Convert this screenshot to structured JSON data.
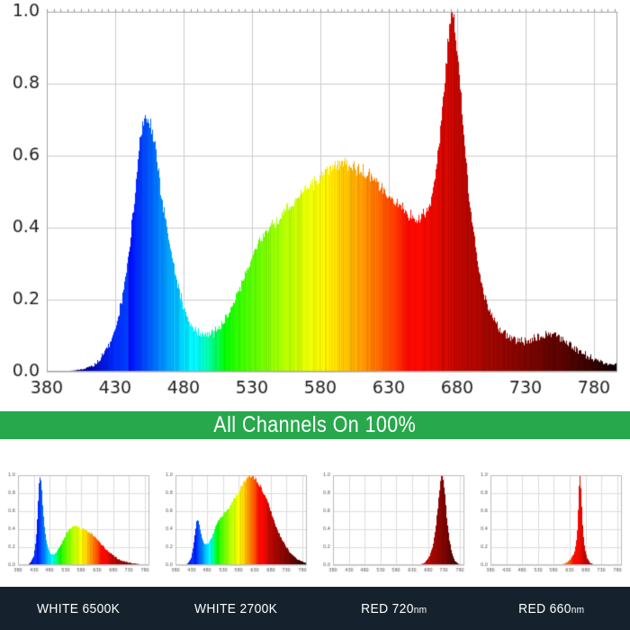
{
  "page": {
    "bg": "#ffffff"
  },
  "banner": {
    "text": "All Channels On 100%",
    "bg": "#27a84c",
    "text_color": "#ffffff"
  },
  "footer": {
    "bg": "#15222e",
    "text_color": "#ffffff",
    "labels": [
      {
        "name": "WHITE 6500K",
        "unit": ""
      },
      {
        "name": "WHITE 2700K",
        "unit": ""
      },
      {
        "name": "RED 720",
        "unit": "nm"
      },
      {
        "name": "RED 660",
        "unit": "nm"
      }
    ]
  },
  "chart_data": [
    {
      "id": "all-channels-100",
      "type": "area",
      "title": "All Channels On 100%",
      "xlabel": "",
      "ylabel": "",
      "grid": true,
      "xlim": [
        380,
        797
      ],
      "ylim": [
        0,
        1
      ],
      "x_ticks": [
        380,
        430,
        480,
        530,
        580,
        630,
        680,
        730,
        780
      ],
      "y_ticks": [
        0,
        0.2,
        0.4,
        0.6,
        0.8,
        1.0
      ],
      "points": [
        [
          380,
          0
        ],
        [
          400,
          0.003
        ],
        [
          408,
          0.008
        ],
        [
          415,
          0.02
        ],
        [
          420,
          0.04
        ],
        [
          425,
          0.07
        ],
        [
          430,
          0.12
        ],
        [
          435,
          0.2
        ],
        [
          440,
          0.33
        ],
        [
          444,
          0.48
        ],
        [
          448,
          0.63
        ],
        [
          451,
          0.7
        ],
        [
          453,
          0.72
        ],
        [
          456,
          0.69
        ],
        [
          460,
          0.6
        ],
        [
          464,
          0.48
        ],
        [
          468,
          0.39
        ],
        [
          472,
          0.31
        ],
        [
          476,
          0.24
        ],
        [
          480,
          0.18
        ],
        [
          484,
          0.145
        ],
        [
          488,
          0.118
        ],
        [
          492,
          0.105
        ],
        [
          497,
          0.1
        ],
        [
          502,
          0.108
        ],
        [
          507,
          0.125
        ],
        [
          512,
          0.155
        ],
        [
          517,
          0.195
        ],
        [
          522,
          0.24
        ],
        [
          527,
          0.29
        ],
        [
          532,
          0.335
        ],
        [
          537,
          0.37
        ],
        [
          542,
          0.395
        ],
        [
          547,
          0.415
        ],
        [
          552,
          0.435
        ],
        [
          557,
          0.455
        ],
        [
          562,
          0.475
        ],
        [
          567,
          0.495
        ],
        [
          572,
          0.515
        ],
        [
          577,
          0.535
        ],
        [
          582,
          0.55
        ],
        [
          587,
          0.565
        ],
        [
          592,
          0.575
        ],
        [
          596,
          0.58
        ],
        [
          600,
          0.575
        ],
        [
          605,
          0.565
        ],
        [
          610,
          0.555
        ],
        [
          615,
          0.545
        ],
        [
          620,
          0.53
        ],
        [
          625,
          0.51
        ],
        [
          630,
          0.49
        ],
        [
          635,
          0.47
        ],
        [
          640,
          0.45
        ],
        [
          645,
          0.435
        ],
        [
          650,
          0.425
        ],
        [
          654,
          0.43
        ],
        [
          658,
          0.45
        ],
        [
          661,
          0.48
        ],
        [
          664,
          0.55
        ],
        [
          667,
          0.64
        ],
        [
          670,
          0.76
        ],
        [
          672,
          0.86
        ],
        [
          674,
          0.94
        ],
        [
          676,
          1
        ],
        [
          678,
          0.96
        ],
        [
          680,
          0.89
        ],
        [
          682,
          0.8
        ],
        [
          684,
          0.7
        ],
        [
          686,
          0.61
        ],
        [
          688,
          0.52
        ],
        [
          691,
          0.42
        ],
        [
          694,
          0.33
        ],
        [
          697,
          0.26
        ],
        [
          700,
          0.21
        ],
        [
          704,
          0.165
        ],
        [
          708,
          0.135
        ],
        [
          712,
          0.115
        ],
        [
          716,
          0.1
        ],
        [
          720,
          0.092
        ],
        [
          725,
          0.085
        ],
        [
          730,
          0.085
        ],
        [
          735,
          0.09
        ],
        [
          740,
          0.098
        ],
        [
          745,
          0.105
        ],
        [
          748,
          0.108
        ],
        [
          752,
          0.103
        ],
        [
          756,
          0.093
        ],
        [
          760,
          0.08
        ],
        [
          765,
          0.066
        ],
        [
          770,
          0.054
        ],
        [
          775,
          0.044
        ],
        [
          780,
          0.035
        ],
        [
          785,
          0.028
        ],
        [
          790,
          0.022
        ],
        [
          795,
          0.018
        ],
        [
          797,
          0.025
        ]
      ]
    },
    {
      "id": "white-6500k",
      "type": "area",
      "title": "WHITE 6500K",
      "xlabel": "",
      "ylabel": "",
      "grid": true,
      "xlim": [
        380,
        795
      ],
      "ylim": [
        0,
        1
      ],
      "x_ticks": [
        380,
        430,
        480,
        530,
        580,
        630,
        680,
        730,
        780
      ],
      "y_ticks": [
        0,
        0.2,
        0.4,
        0.6,
        0.8,
        1.0
      ],
      "points": [
        [
          380,
          0
        ],
        [
          408,
          0.005
        ],
        [
          414,
          0.012
        ],
        [
          420,
          0.03
        ],
        [
          425,
          0.06
        ],
        [
          430,
          0.11
        ],
        [
          434,
          0.19
        ],
        [
          438,
          0.33
        ],
        [
          442,
          0.56
        ],
        [
          445,
          0.8
        ],
        [
          448,
          0.95
        ],
        [
          450,
          1
        ],
        [
          452,
          0.96
        ],
        [
          455,
          0.84
        ],
        [
          458,
          0.67
        ],
        [
          462,
          0.49
        ],
        [
          466,
          0.36
        ],
        [
          470,
          0.27
        ],
        [
          474,
          0.2
        ],
        [
          478,
          0.155
        ],
        [
          482,
          0.13
        ],
        [
          486,
          0.12
        ],
        [
          490,
          0.118
        ],
        [
          495,
          0.125
        ],
        [
          500,
          0.14
        ],
        [
          505,
          0.16
        ],
        [
          510,
          0.19
        ],
        [
          515,
          0.22
        ],
        [
          520,
          0.26
        ],
        [
          525,
          0.3
        ],
        [
          530,
          0.335
        ],
        [
          535,
          0.365
        ],
        [
          540,
          0.39
        ],
        [
          545,
          0.41
        ],
        [
          550,
          0.42
        ],
        [
          555,
          0.43
        ],
        [
          560,
          0.432
        ],
        [
          565,
          0.43
        ],
        [
          570,
          0.425
        ],
        [
          575,
          0.42
        ],
        [
          580,
          0.415
        ],
        [
          585,
          0.41
        ],
        [
          590,
          0.4
        ],
        [
          595,
          0.39
        ],
        [
          600,
          0.38
        ],
        [
          610,
          0.355
        ],
        [
          620,
          0.325
        ],
        [
          630,
          0.29
        ],
        [
          640,
          0.25
        ],
        [
          650,
          0.21
        ],
        [
          660,
          0.175
        ],
        [
          670,
          0.14
        ],
        [
          680,
          0.11
        ],
        [
          690,
          0.085
        ],
        [
          700,
          0.065
        ],
        [
          710,
          0.05
        ],
        [
          720,
          0.038
        ],
        [
          730,
          0.028
        ],
        [
          740,
          0.022
        ],
        [
          750,
          0.017
        ],
        [
          760,
          0.013
        ],
        [
          770,
          0.01
        ],
        [
          780,
          0.008
        ],
        [
          790,
          0.006
        ]
      ]
    },
    {
      "id": "white-2700k",
      "type": "area",
      "title": "WHITE 2700K",
      "xlabel": "",
      "ylabel": "",
      "grid": true,
      "xlim": [
        380,
        795
      ],
      "ylim": [
        0,
        1
      ],
      "x_ticks": [
        380,
        430,
        480,
        530,
        580,
        630,
        680,
        730,
        780
      ],
      "y_ticks": [
        0,
        0.2,
        0.4,
        0.6,
        0.8,
        1.0
      ],
      "points": [
        [
          380,
          0
        ],
        [
          412,
          0.005
        ],
        [
          418,
          0.015
        ],
        [
          424,
          0.04
        ],
        [
          428,
          0.07
        ],
        [
          432,
          0.12
        ],
        [
          436,
          0.2
        ],
        [
          440,
          0.3
        ],
        [
          444,
          0.41
        ],
        [
          447,
          0.48
        ],
        [
          450,
          0.51
        ],
        [
          453,
          0.49
        ],
        [
          456,
          0.43
        ],
        [
          460,
          0.36
        ],
        [
          464,
          0.3
        ],
        [
          468,
          0.26
        ],
        [
          472,
          0.235
        ],
        [
          476,
          0.225
        ],
        [
          480,
          0.23
        ],
        [
          485,
          0.25
        ],
        [
          490,
          0.28
        ],
        [
          495,
          0.315
        ],
        [
          500,
          0.36
        ],
        [
          505,
          0.41
        ],
        [
          510,
          0.45
        ],
        [
          515,
          0.49
        ],
        [
          520,
          0.52
        ],
        [
          525,
          0.545
        ],
        [
          530,
          0.565
        ],
        [
          535,
          0.58
        ],
        [
          540,
          0.6
        ],
        [
          545,
          0.62
        ],
        [
          550,
          0.645
        ],
        [
          555,
          0.67
        ],
        [
          560,
          0.7
        ],
        [
          565,
          0.73
        ],
        [
          570,
          0.76
        ],
        [
          575,
          0.79
        ],
        [
          580,
          0.825
        ],
        [
          585,
          0.855
        ],
        [
          590,
          0.885
        ],
        [
          595,
          0.915
        ],
        [
          600,
          0.945
        ],
        [
          605,
          0.97
        ],
        [
          610,
          0.99
        ],
        [
          615,
          1
        ],
        [
          620,
          0.995
        ],
        [
          625,
          0.985
        ],
        [
          630,
          0.97
        ],
        [
          635,
          0.95
        ],
        [
          640,
          0.925
        ],
        [
          645,
          0.9
        ],
        [
          650,
          0.87
        ],
        [
          655,
          0.84
        ],
        [
          660,
          0.8
        ],
        [
          665,
          0.755
        ],
        [
          670,
          0.71
        ],
        [
          675,
          0.66
        ],
        [
          680,
          0.61
        ],
        [
          685,
          0.56
        ],
        [
          690,
          0.51
        ],
        [
          695,
          0.465
        ],
        [
          700,
          0.42
        ],
        [
          705,
          0.375
        ],
        [
          710,
          0.335
        ],
        [
          715,
          0.295
        ],
        [
          720,
          0.26
        ],
        [
          725,
          0.23
        ],
        [
          730,
          0.2
        ],
        [
          735,
          0.175
        ],
        [
          740,
          0.15
        ],
        [
          745,
          0.13
        ],
        [
          750,
          0.11
        ],
        [
          755,
          0.095
        ],
        [
          760,
          0.08
        ],
        [
          765,
          0.068
        ],
        [
          770,
          0.057
        ],
        [
          775,
          0.048
        ],
        [
          780,
          0.04
        ],
        [
          785,
          0.033
        ],
        [
          790,
          0.027
        ]
      ]
    },
    {
      "id": "red-720nm",
      "type": "area",
      "title": "RED 720nm",
      "xlabel": "",
      "ylabel": "",
      "grid": true,
      "xlim": [
        380,
        795
      ],
      "ylim": [
        0,
        1
      ],
      "x_ticks": [
        380,
        430,
        480,
        530,
        580,
        630,
        680,
        730,
        780
      ],
      "y_ticks": [
        0,
        0.2,
        0.4,
        0.6,
        0.8,
        1.0
      ],
      "points": [
        [
          380,
          0
        ],
        [
          640,
          0.002
        ],
        [
          650,
          0.006
        ],
        [
          658,
          0.012
        ],
        [
          664,
          0.02
        ],
        [
          670,
          0.032
        ],
        [
          676,
          0.05
        ],
        [
          681,
          0.075
        ],
        [
          686,
          0.11
        ],
        [
          690,
          0.15
        ],
        [
          694,
          0.2
        ],
        [
          698,
          0.27
        ],
        [
          702,
          0.36
        ],
        [
          706,
          0.47
        ],
        [
          710,
          0.6
        ],
        [
          714,
          0.74
        ],
        [
          717,
          0.85
        ],
        [
          720,
          0.93
        ],
        [
          722,
          0.975
        ],
        [
          724,
          1
        ],
        [
          726,
          0.99
        ],
        [
          728,
          0.95
        ],
        [
          731,
          0.87
        ],
        [
          734,
          0.76
        ],
        [
          737,
          0.64
        ],
        [
          740,
          0.52
        ],
        [
          744,
          0.39
        ],
        [
          748,
          0.28
        ],
        [
          752,
          0.2
        ],
        [
          756,
          0.13
        ],
        [
          760,
          0.09
        ],
        [
          765,
          0.055
        ],
        [
          770,
          0.032
        ],
        [
          775,
          0.018
        ],
        [
          780,
          0.01
        ],
        [
          786,
          0.005
        ],
        [
          792,
          0.003
        ],
        [
          795,
          0.002
        ]
      ]
    },
    {
      "id": "red-660nm",
      "type": "area",
      "title": "RED 660nm",
      "xlabel": "",
      "ylabel": "",
      "grid": true,
      "xlim": [
        380,
        795
      ],
      "ylim": [
        0,
        1
      ],
      "x_ticks": [
        380,
        430,
        480,
        530,
        580,
        630,
        680,
        730,
        780
      ],
      "y_ticks": [
        0,
        0.2,
        0.4,
        0.6,
        0.8,
        1.0
      ],
      "points": [
        [
          380,
          0
        ],
        [
          595,
          0.003
        ],
        [
          602,
          0.006
        ],
        [
          608,
          0.012
        ],
        [
          614,
          0.02
        ],
        [
          620,
          0.03
        ],
        [
          626,
          0.045
        ],
        [
          632,
          0.065
        ],
        [
          637,
          0.09
        ],
        [
          641,
          0.115
        ],
        [
          645,
          0.15
        ],
        [
          648,
          0.19
        ],
        [
          650,
          0.23
        ],
        [
          652,
          0.29
        ],
        [
          654,
          0.38
        ],
        [
          656,
          0.52
        ],
        [
          658,
          0.72
        ],
        [
          660,
          0.9
        ],
        [
          661,
          0.97
        ],
        [
          662,
          1
        ],
        [
          663,
          0.99
        ],
        [
          665,
          0.9
        ],
        [
          667,
          0.76
        ],
        [
          669,
          0.6
        ],
        [
          671,
          0.46
        ],
        [
          673,
          0.35
        ],
        [
          675,
          0.27
        ],
        [
          678,
          0.19
        ],
        [
          681,
          0.135
        ],
        [
          684,
          0.095
        ],
        [
          688,
          0.06
        ],
        [
          692,
          0.04
        ],
        [
          696,
          0.027
        ],
        [
          700,
          0.018
        ],
        [
          706,
          0.011
        ],
        [
          712,
          0.007
        ],
        [
          720,
          0.004
        ],
        [
          730,
          0.002
        ],
        [
          745,
          0.002
        ],
        [
          755,
          0.006
        ],
        [
          760,
          0.003
        ],
        [
          770,
          0.004
        ],
        [
          775,
          0.001
        ],
        [
          790,
          0
        ]
      ]
    }
  ]
}
